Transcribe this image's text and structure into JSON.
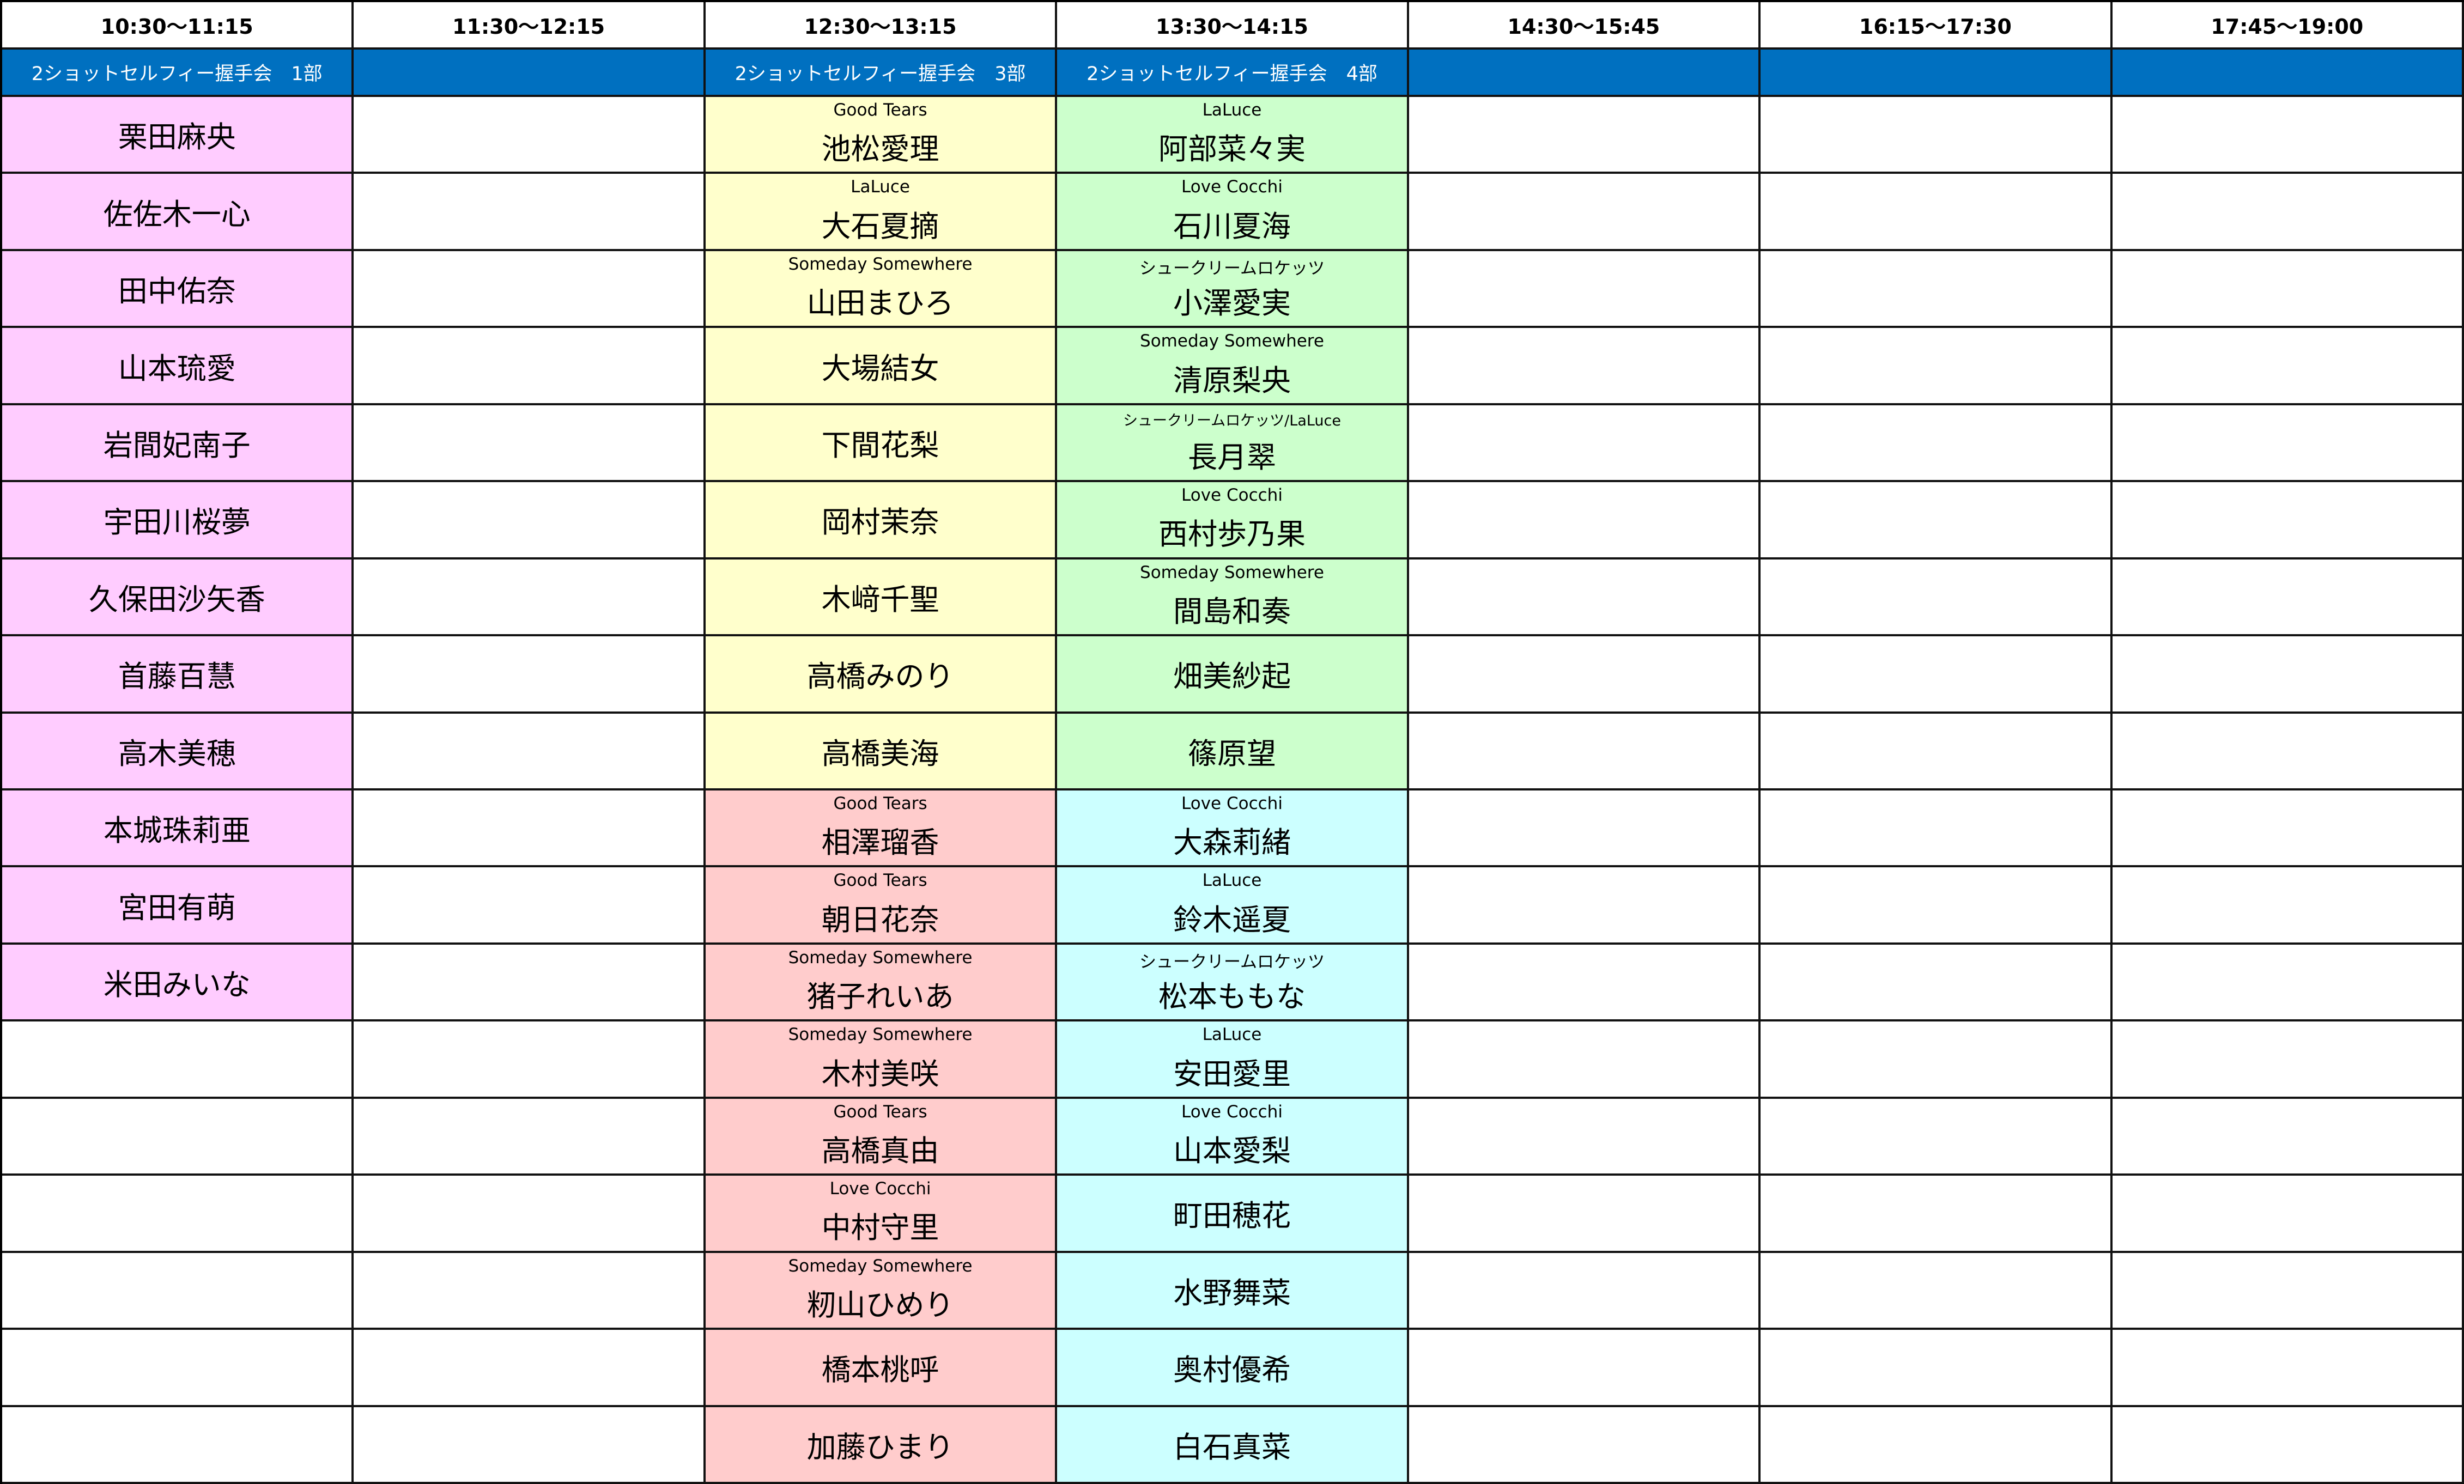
{
  "colors": {
    "session_bar": "#0070C0",
    "pink": "#FFCCFF",
    "yellow": "#FFFFCC",
    "green": "#CCFFCC",
    "rose": "#FFCCCC",
    "cyan": "#CCFFFF"
  },
  "columns": [
    {
      "time": "10:30〜11:15",
      "session": "2ショットセルフィー握手会　1部",
      "cells": [
        {
          "name": "栗田麻央",
          "color": "pink"
        },
        {
          "name": "佐佐木一心",
          "color": "pink"
        },
        {
          "name": "田中佑奈",
          "color": "pink"
        },
        {
          "name": "山本琉愛",
          "color": "pink"
        },
        {
          "name": "岩間妃南子",
          "color": "pink"
        },
        {
          "name": "宇田川桜夢",
          "color": "pink"
        },
        {
          "name": "久保田沙矢香",
          "color": "pink"
        },
        {
          "name": "首藤百慧",
          "color": "pink"
        },
        {
          "name": "高木美穂",
          "color": "pink"
        },
        {
          "name": "本城珠莉亜",
          "color": "pink"
        },
        {
          "name": "宮田有萌",
          "color": "pink"
        },
        {
          "name": "米田みいな",
          "color": "pink"
        }
      ]
    },
    {
      "time": "11:30〜12:15",
      "session": "",
      "cells": []
    },
    {
      "time": "12:30〜13:15",
      "session": "2ショットセルフィー握手会　3部",
      "cells": [
        {
          "group": "Good Tears",
          "name": "池松愛理",
          "color": "yellow"
        },
        {
          "group": "LaLuce",
          "name": "大石夏摘",
          "color": "yellow"
        },
        {
          "group": "Someday Somewhere",
          "name": "山田まひろ",
          "color": "yellow"
        },
        {
          "name": "大場結女",
          "color": "yellow"
        },
        {
          "name": "下間花梨",
          "color": "yellow"
        },
        {
          "name": "岡村茉奈",
          "color": "yellow"
        },
        {
          "name": "木﨑千聖",
          "color": "yellow"
        },
        {
          "name": "高橋みのり",
          "color": "yellow"
        },
        {
          "name": "高橋美海",
          "color": "yellow"
        },
        {
          "group": "Good Tears",
          "name": "相澤瑠香",
          "color": "rose"
        },
        {
          "group": "Good Tears",
          "name": "朝日花奈",
          "color": "rose"
        },
        {
          "group": "Someday Somewhere",
          "name": "猪子れいあ",
          "color": "rose"
        },
        {
          "group": "Someday Somewhere",
          "name": "木村美咲",
          "color": "rose"
        },
        {
          "group": "Good Tears",
          "name": "高橋真由",
          "color": "rose"
        },
        {
          "group": "Love Cocchi",
          "name": "中村守里",
          "color": "rose"
        },
        {
          "group": "Someday Somewhere",
          "name": "籾山ひめり",
          "color": "rose"
        },
        {
          "name": "橋本桃呼",
          "color": "rose"
        },
        {
          "name": "加藤ひまり",
          "color": "rose"
        }
      ]
    },
    {
      "time": "13:30〜14:15",
      "session": "2ショットセルフィー握手会　4部",
      "cells": [
        {
          "group": "LaLuce",
          "name": "阿部菜々実",
          "color": "green"
        },
        {
          "group": "Love Cocchi",
          "name": "石川夏海",
          "color": "green"
        },
        {
          "group": "シュークリームロケッツ",
          "name": "小澤愛実",
          "color": "green"
        },
        {
          "group": "Someday Somewhere",
          "name": "清原梨央",
          "color": "green"
        },
        {
          "group": "シュークリームロケッツ/LaLuce",
          "name": "長月翠",
          "color": "green",
          "small": true
        },
        {
          "group": "Love Cocchi",
          "name": "西村歩乃果",
          "color": "green"
        },
        {
          "group": "Someday Somewhere",
          "name": "間島和奏",
          "color": "green"
        },
        {
          "name": "畑美紗起",
          "color": "green"
        },
        {
          "name": "篠原望",
          "color": "green"
        },
        {
          "group": "Love Cocchi",
          "name": "大森莉緒",
          "color": "cyan"
        },
        {
          "group": "LaLuce",
          "name": "鈴木遥夏",
          "color": "cyan"
        },
        {
          "group": "シュークリームロケッツ",
          "name": "松本ももな",
          "color": "cyan"
        },
        {
          "group": "LaLuce",
          "name": "安田愛里",
          "color": "cyan"
        },
        {
          "group": "Love Cocchi",
          "name": "山本愛梨",
          "color": "cyan"
        },
        {
          "name": "町田穂花",
          "color": "cyan"
        },
        {
          "name": "水野舞菜",
          "color": "cyan"
        },
        {
          "name": "奥村優希",
          "color": "cyan"
        },
        {
          "name": "白石真菜",
          "color": "cyan"
        }
      ]
    },
    {
      "time": "14:30〜15:45",
      "session": "",
      "cells": []
    },
    {
      "time": "16:15〜17:30",
      "session": "",
      "cells": []
    },
    {
      "time": "17:45〜19:00",
      "session": "",
      "cells": []
    }
  ]
}
